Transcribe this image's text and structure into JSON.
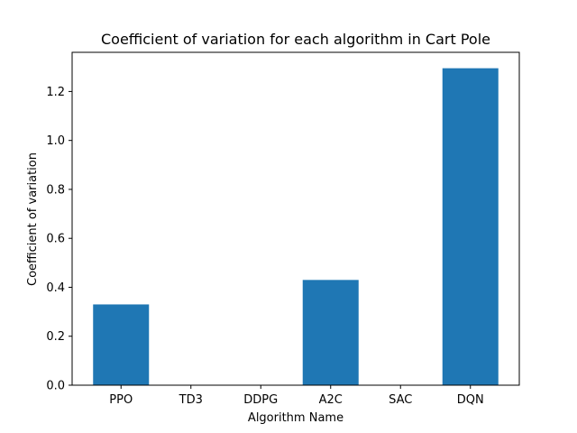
{
  "chart_data": {
    "type": "bar",
    "title": "Coefficient of variation for each algorithm in Cart Pole",
    "xlabel": "Algorithm Name",
    "ylabel": "Coefficient of variation",
    "categories": [
      "PPO",
      "TD3",
      "DDPG",
      "A2C",
      "SAC",
      "DQN"
    ],
    "values": [
      0.33,
      0.0,
      0.0,
      0.43,
      0.0,
      1.295
    ],
    "ylim": [
      0,
      1.36
    ],
    "yticks": [
      0.0,
      0.2,
      0.4,
      0.6,
      0.8,
      1.0,
      1.2
    ],
    "ytick_labels": [
      "0.0",
      "0.2",
      "0.4",
      "0.6",
      "0.8",
      "1.0",
      "1.2"
    ],
    "bar_color": "#1f77b4",
    "grid": false,
    "legend": "none"
  }
}
